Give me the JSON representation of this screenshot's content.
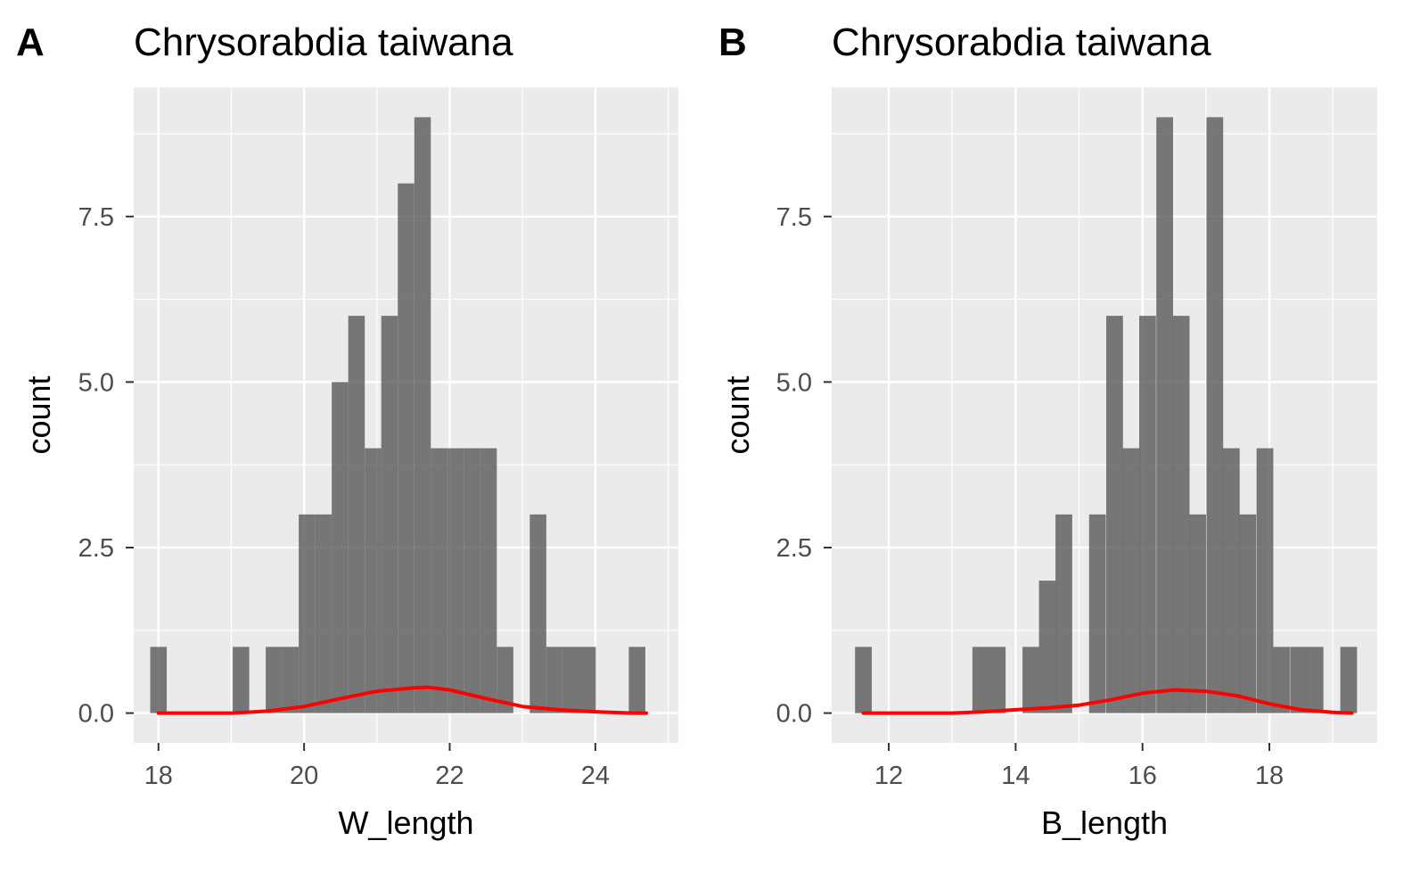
{
  "chart_data": [
    {
      "panel_tag": "A",
      "type": "histogram",
      "title": "Chrysorabdia taiwana",
      "xlabel": "W_length",
      "ylabel": "count",
      "xlim": [
        17.66,
        25.14
      ],
      "ylim": [
        -0.45,
        9.45
      ],
      "x_ticks": [
        18,
        20,
        22,
        24
      ],
      "x_tick_labels": [
        "18",
        "20",
        "22",
        "24"
      ],
      "y_ticks": [
        0,
        2.5,
        5,
        7.5
      ],
      "y_tick_labels": [
        "0.0",
        "2.5",
        "5.0",
        "7.5"
      ],
      "grid": true,
      "bin_width": 0.2267,
      "bins": [
        {
          "x": 18.0,
          "count": 1
        },
        {
          "x": 18.227,
          "count": 0
        },
        {
          "x": 18.453,
          "count": 0
        },
        {
          "x": 18.68,
          "count": 0
        },
        {
          "x": 18.907,
          "count": 0
        },
        {
          "x": 19.133,
          "count": 1
        },
        {
          "x": 19.36,
          "count": 0
        },
        {
          "x": 19.587,
          "count": 1
        },
        {
          "x": 19.813,
          "count": 1
        },
        {
          "x": 20.04,
          "count": 3
        },
        {
          "x": 20.267,
          "count": 3
        },
        {
          "x": 20.493,
          "count": 5
        },
        {
          "x": 20.72,
          "count": 6
        },
        {
          "x": 20.947,
          "count": 4
        },
        {
          "x": 21.173,
          "count": 6
        },
        {
          "x": 21.4,
          "count": 8
        },
        {
          "x": 21.627,
          "count": 9
        },
        {
          "x": 21.853,
          "count": 4
        },
        {
          "x": 22.08,
          "count": 4
        },
        {
          "x": 22.307,
          "count": 4
        },
        {
          "x": 22.533,
          "count": 4
        },
        {
          "x": 22.76,
          "count": 1
        },
        {
          "x": 22.987,
          "count": 0
        },
        {
          "x": 23.213,
          "count": 3
        },
        {
          "x": 23.44,
          "count": 1
        },
        {
          "x": 23.667,
          "count": 1
        },
        {
          "x": 23.893,
          "count": 1
        },
        {
          "x": 24.12,
          "count": 0
        },
        {
          "x": 24.347,
          "count": 0
        },
        {
          "x": 24.573,
          "count": 1
        }
      ],
      "density_line": {
        "color": "#ff0000",
        "x": [
          18.0,
          18.5,
          19.0,
          19.5,
          20.0,
          20.5,
          21.0,
          21.5,
          21.7,
          22.0,
          22.5,
          23.0,
          23.5,
          24.0,
          24.5,
          24.7
        ],
        "y": [
          0.0,
          0.0,
          0.0,
          0.03,
          0.1,
          0.22,
          0.33,
          0.38,
          0.39,
          0.35,
          0.22,
          0.1,
          0.05,
          0.02,
          0.0,
          0.0
        ]
      },
      "colors": {
        "bar": "#595959",
        "panel_bg": "#ebebeb",
        "grid": "#ffffff"
      }
    },
    {
      "panel_tag": "B",
      "type": "histogram",
      "title": "Chrysorabdia taiwana",
      "xlabel": "B_length",
      "ylabel": "count",
      "xlim": [
        11.1,
        19.7
      ],
      "ylim": [
        -0.45,
        9.45
      ],
      "x_ticks": [
        12,
        14,
        16,
        18
      ],
      "x_tick_labels": [
        "12",
        "14",
        "16",
        "18"
      ],
      "y_ticks": [
        0,
        2.5,
        5,
        7.5
      ],
      "y_tick_labels": [
        "0.0",
        "2.5",
        "5.0",
        "7.5"
      ],
      "grid": true,
      "bin_width": 0.2636,
      "bins": [
        {
          "x": 11.6,
          "count": 1
        },
        {
          "x": 11.86,
          "count": 0
        },
        {
          "x": 12.13,
          "count": 0
        },
        {
          "x": 12.39,
          "count": 0
        },
        {
          "x": 12.65,
          "count": 0
        },
        {
          "x": 12.92,
          "count": 0
        },
        {
          "x": 13.18,
          "count": 0
        },
        {
          "x": 13.45,
          "count": 1
        },
        {
          "x": 13.71,
          "count": 1
        },
        {
          "x": 13.97,
          "count": 0
        },
        {
          "x": 14.24,
          "count": 1
        },
        {
          "x": 14.5,
          "count": 2
        },
        {
          "x": 14.76,
          "count": 3
        },
        {
          "x": 15.03,
          "count": 0
        },
        {
          "x": 15.29,
          "count": 3
        },
        {
          "x": 15.56,
          "count": 6
        },
        {
          "x": 15.82,
          "count": 4
        },
        {
          "x": 16.08,
          "count": 6
        },
        {
          "x": 16.35,
          "count": 9
        },
        {
          "x": 16.61,
          "count": 6
        },
        {
          "x": 16.87,
          "count": 3
        },
        {
          "x": 17.14,
          "count": 9
        },
        {
          "x": 17.4,
          "count": 4
        },
        {
          "x": 17.66,
          "count": 3
        },
        {
          "x": 17.93,
          "count": 4
        },
        {
          "x": 18.19,
          "count": 1
        },
        {
          "x": 18.46,
          "count": 1
        },
        {
          "x": 18.72,
          "count": 1
        },
        {
          "x": 18.98,
          "count": 0
        },
        {
          "x": 19.25,
          "count": 1
        }
      ],
      "density_line": {
        "color": "#ff0000",
        "x": [
          11.6,
          12.5,
          13.0,
          13.5,
          14.0,
          14.5,
          15.0,
          15.5,
          16.0,
          16.5,
          17.0,
          17.5,
          18.0,
          18.5,
          19.0,
          19.3
        ],
        "y": [
          0.0,
          0.0,
          0.0,
          0.02,
          0.05,
          0.08,
          0.12,
          0.2,
          0.3,
          0.35,
          0.33,
          0.26,
          0.14,
          0.05,
          0.01,
          0.0
        ]
      },
      "colors": {
        "bar": "#595959",
        "panel_bg": "#ebebeb",
        "grid": "#ffffff"
      }
    }
  ]
}
